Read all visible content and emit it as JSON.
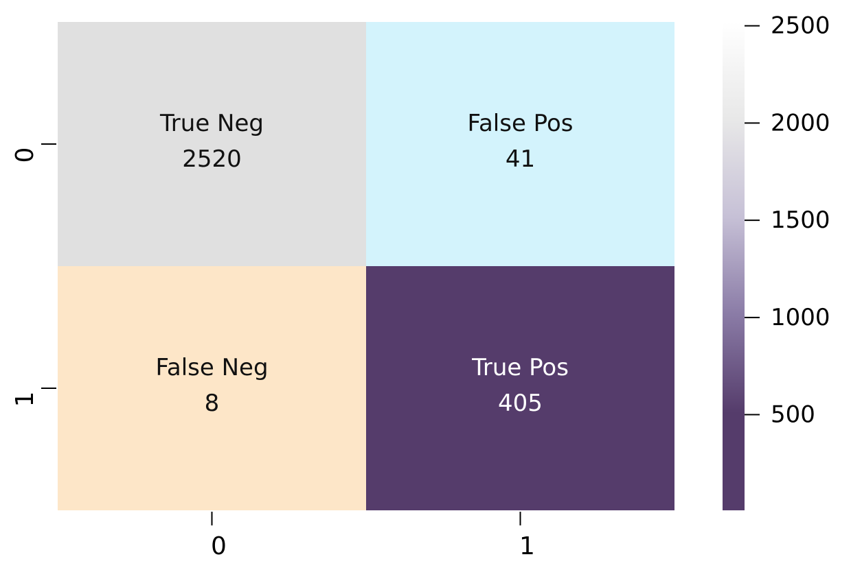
{
  "chart_data": {
    "type": "heatmap",
    "title": "",
    "xlabel": "",
    "ylabel": "",
    "x_categories": [
      "0",
      "1"
    ],
    "y_categories": [
      "0",
      "1"
    ],
    "cells": [
      {
        "row": 0,
        "col": 0,
        "name": "True Neg",
        "value": 2520,
        "value_label": "2520",
        "color": "#e0e0e0",
        "text_color": "#111111"
      },
      {
        "row": 0,
        "col": 1,
        "name": "False Pos",
        "value": 41,
        "value_label": "41",
        "color": "#d3f3fc",
        "text_color": "#111111"
      },
      {
        "row": 1,
        "col": 0,
        "name": "False Neg",
        "value": 8,
        "value_label": "8",
        "color": "#fde6c8",
        "text_color": "#111111"
      },
      {
        "row": 1,
        "col": 1,
        "name": "True Pos",
        "value": 405,
        "value_label": "405",
        "color": "#553c6b",
        "text_color": "#ffffff"
      }
    ],
    "colorbar": {
      "range": [
        8,
        2520
      ],
      "ticks": [
        500,
        1000,
        1500,
        2000,
        2500
      ],
      "tick_labels": [
        "500",
        "1000",
        "1500",
        "2000",
        "2500"
      ],
      "colors": [
        "#553c6b",
        "#553c6b",
        "#8a7ba6",
        "#c6c0d6",
        "#e8e8e8",
        "#ffffff"
      ]
    },
    "grid": false,
    "legend": "colorbar-right"
  }
}
